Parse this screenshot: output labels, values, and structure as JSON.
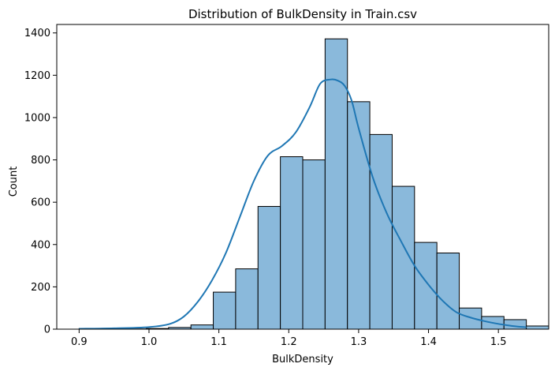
{
  "chart_data": {
    "type": "bar",
    "subtype": "histogram",
    "title": "Distribution of BulkDensity in Train.csv",
    "xlabel": "BulkDensity",
    "ylabel": "Count",
    "xlim": [
      0.868,
      1.572
    ],
    "ylim": [
      0,
      1440
    ],
    "xticks": [
      0.9,
      1.0,
      1.1,
      1.2,
      1.3,
      1.4,
      1.5
    ],
    "xtick_labels": [
      "0.9",
      "1.0",
      "1.1",
      "1.2",
      "1.3",
      "1.4",
      "1.5"
    ],
    "yticks": [
      0,
      200,
      400,
      600,
      800,
      1000,
      1200,
      1400
    ],
    "ytick_labels": [
      "0",
      "200",
      "400",
      "600",
      "800",
      "1000",
      "1200",
      "1400"
    ],
    "bin_start": 0.9,
    "bin_width": 0.032,
    "counts": [
      3,
      0,
      1,
      3,
      8,
      20,
      175,
      285,
      580,
      815,
      800,
      1372,
      1075,
      920,
      675,
      410,
      360,
      100,
      60,
      45,
      15
    ],
    "kde": {
      "x": [
        0.9,
        0.95,
        1.0,
        1.03,
        1.05,
        1.07,
        1.09,
        1.11,
        1.13,
        1.15,
        1.17,
        1.19,
        1.21,
        1.23,
        1.245,
        1.26,
        1.27,
        1.28,
        1.29,
        1.3,
        1.32,
        1.34,
        1.36,
        1.38,
        1.4,
        1.42,
        1.44,
        1.46,
        1.48,
        1.5,
        1.52,
        1.54
      ],
      "y": [
        2,
        4,
        10,
        25,
        60,
        130,
        230,
        360,
        530,
        700,
        820,
        865,
        930,
        1050,
        1160,
        1180,
        1175,
        1150,
        1080,
        950,
        720,
        550,
        420,
        300,
        210,
        135,
        80,
        55,
        38,
        25,
        15,
        9
      ]
    },
    "colors": {
      "bar_fill": "#8ab9db",
      "bar_edge": "#000000",
      "kde_line": "#1f77b4"
    },
    "grid": false,
    "legend": "none"
  }
}
